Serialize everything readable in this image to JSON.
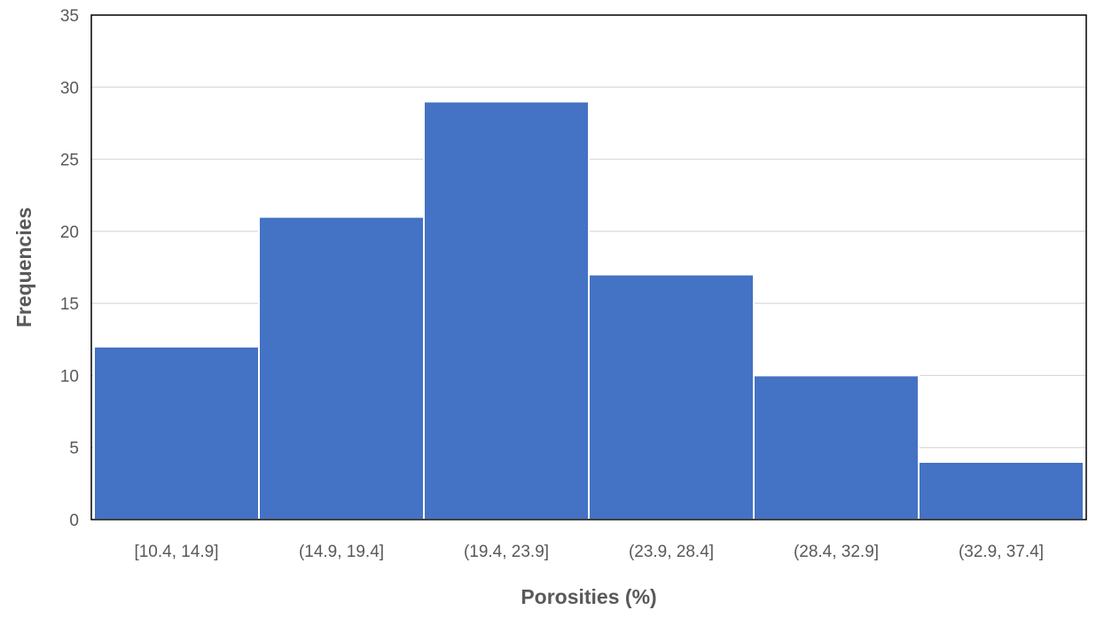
{
  "chart_data": {
    "type": "bar",
    "title": "",
    "xlabel": "Porosities (%)",
    "ylabel": "Frequencies",
    "categories": [
      "[10.4, 14.9]",
      "(14.9, 19.4]",
      "(19.4, 23.9]",
      "(23.9, 28.4]",
      "(28.4, 32.9]",
      "(32.9, 37.4]"
    ],
    "values": [
      12,
      21,
      29,
      17,
      10,
      4
    ],
    "ylim": [
      0,
      35
    ],
    "yticks": [
      "0",
      "5",
      "10",
      "15",
      "20",
      "25",
      "30",
      "35"
    ],
    "grid": true,
    "legend": "none",
    "colors": {
      "bar": "#4472c4",
      "grid": "#d9d9d9",
      "frame": "#000000",
      "text": "#595959"
    }
  }
}
